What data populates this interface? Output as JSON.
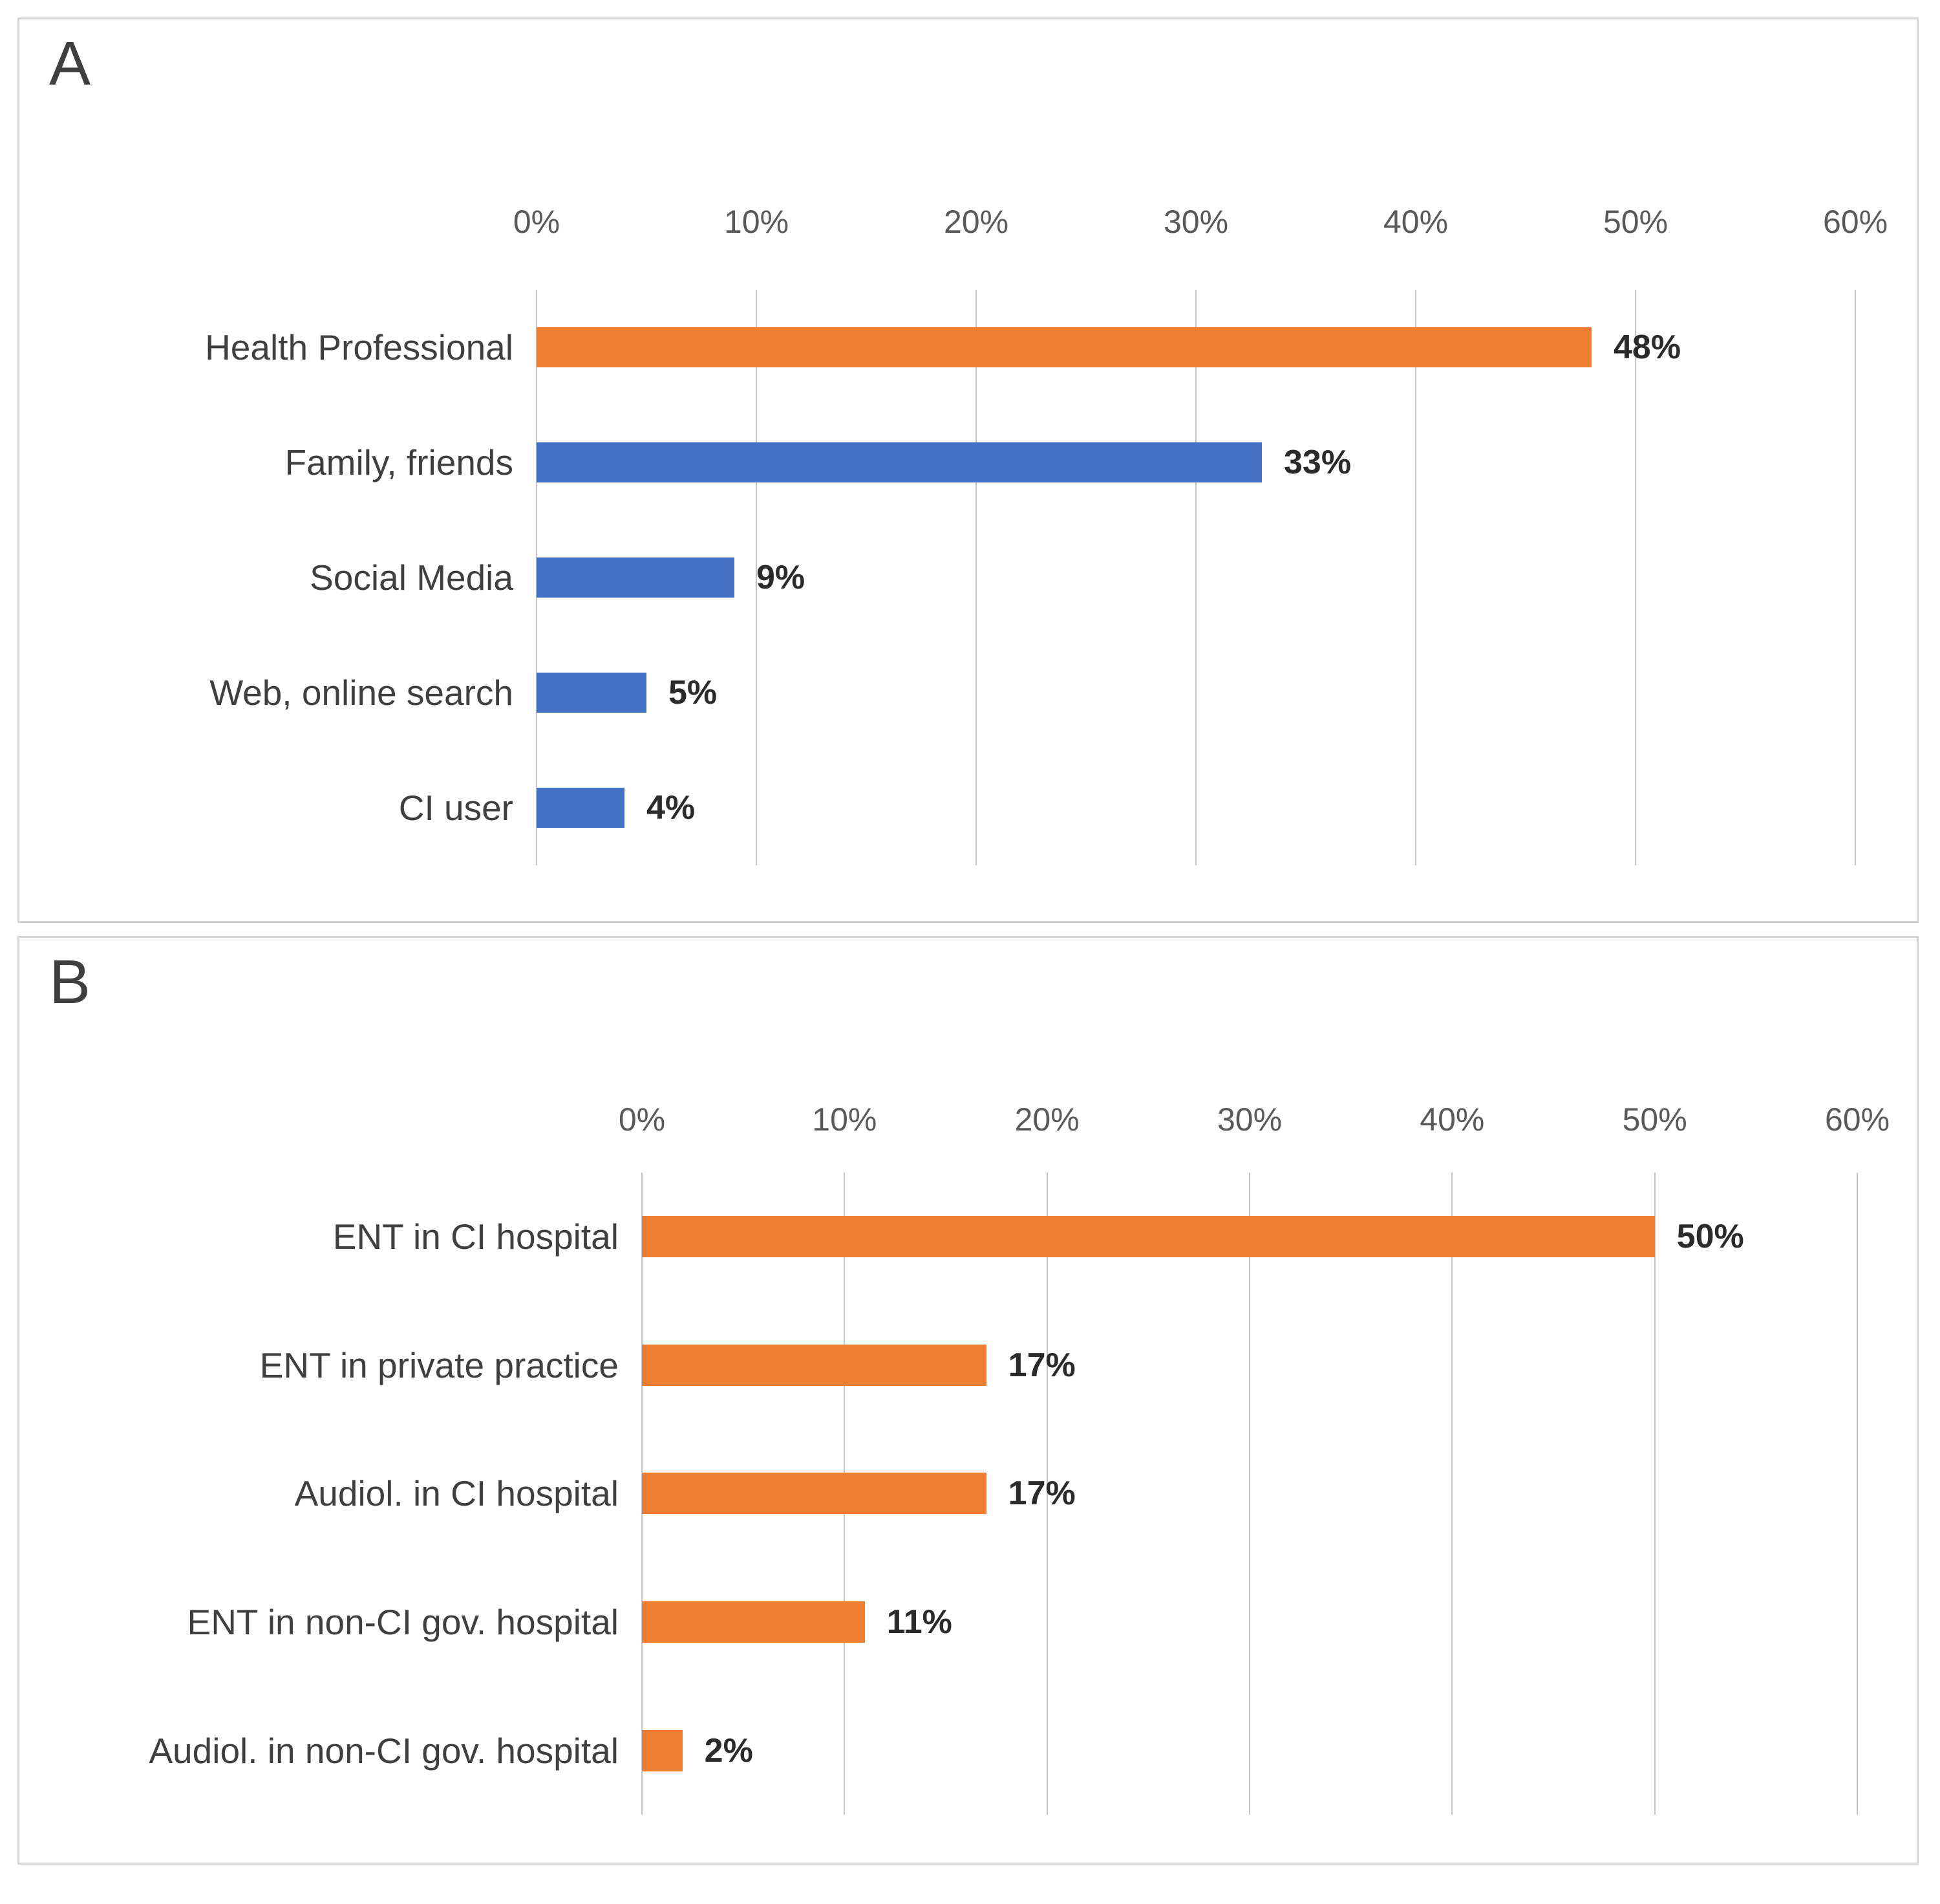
{
  "figure": {
    "panels": [
      {
        "letter": "A"
      },
      {
        "letter": "B"
      }
    ],
    "colors": {
      "orange": "#ED7D31",
      "blue": "#4472C4",
      "gridline": "#C3C3C3",
      "tick_text": "#595959",
      "category_text": "#3F3F3F",
      "value_text": "#2B2B2B",
      "panel_border": "#D4D4D4"
    }
  },
  "chart_data": [
    {
      "type": "bar",
      "orientation": "horizontal",
      "panel_label": "A",
      "title": "",
      "xlabel": "",
      "ylabel": "",
      "axis_position": "top",
      "grid": true,
      "legend": false,
      "xlim": [
        0,
        60
      ],
      "x_ticks": [
        "0%",
        "10%",
        "20%",
        "30%",
        "40%",
        "50%",
        "60%"
      ],
      "categories": [
        "Health Professional",
        "Family, friends",
        "Social Media",
        "Web, online search",
        "CI user"
      ],
      "values": [
        48,
        33,
        9,
        5,
        4
      ],
      "value_labels": [
        "48%",
        "33%",
        "9%",
        "5%",
        "4%"
      ],
      "bar_colors": [
        "#ED7D31",
        "#4472C4",
        "#4472C4",
        "#4472C4",
        "#4472C4"
      ]
    },
    {
      "type": "bar",
      "orientation": "horizontal",
      "panel_label": "B",
      "title": "",
      "xlabel": "",
      "ylabel": "",
      "axis_position": "top",
      "grid": true,
      "legend": false,
      "xlim": [
        0,
        60
      ],
      "x_ticks": [
        "0%",
        "10%",
        "20%",
        "30%",
        "40%",
        "50%",
        "60%"
      ],
      "categories": [
        "ENT in CI hospital",
        "ENT in private practice",
        "Audiol. in CI hospital",
        "ENT in non-CI gov. hospital",
        "Audiol. in non-CI gov. hospital"
      ],
      "values": [
        50,
        17,
        17,
        11,
        2
      ],
      "value_labels": [
        "50%",
        "17%",
        "17%",
        "11%",
        "2%"
      ],
      "bar_colors": [
        "#ED7D31",
        "#ED7D31",
        "#ED7D31",
        "#ED7D31",
        "#ED7D31"
      ]
    }
  ]
}
